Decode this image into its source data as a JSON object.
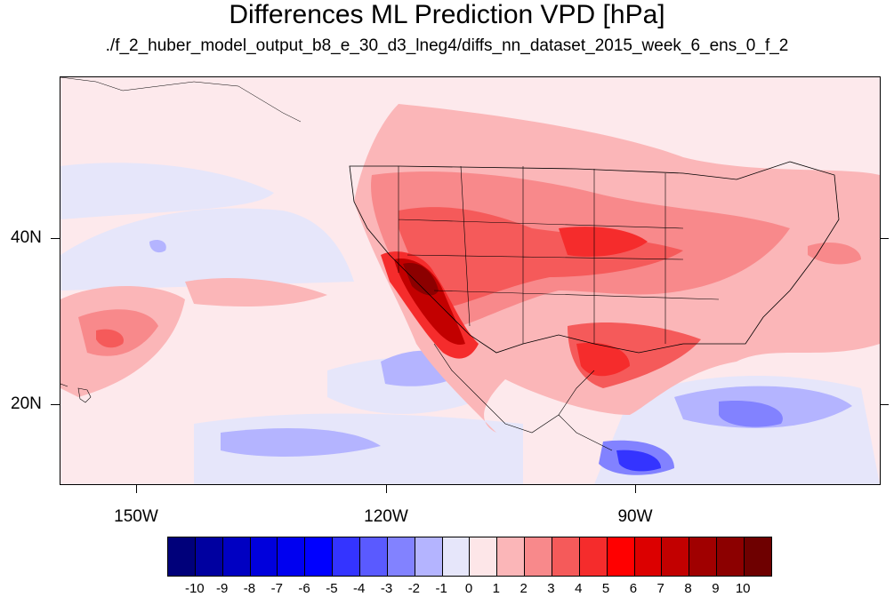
{
  "title": "Differences ML Prediction VPD [hPa]",
  "subtitle": "./f_2_huber_model_output_b8_e_30_d3_lneg4/diffs_nn_dataset_2015_week_6_ens_0_f_2",
  "lat_labels": [
    "40N",
    "20N"
  ],
  "lon_labels": [
    "150W",
    "120W",
    "90W"
  ],
  "colorbar": {
    "labels": [
      "-10",
      "-9",
      "-8",
      "-7",
      "-6",
      "-5",
      "-4",
      "-3",
      "-2",
      "-1",
      "0",
      "1",
      "2",
      "3",
      "4",
      "5",
      "6",
      "7",
      "8",
      "9",
      "10"
    ],
    "colors": [
      "#00007a",
      "#0000a0",
      "#0000c2",
      "#0000dc",
      "#0000f0",
      "#0000ff",
      "#3434ff",
      "#5a5aff",
      "#8282ff",
      "#b4b4ff",
      "#e6e6fa",
      "#fde6e8",
      "#fbb6b8",
      "#f8898b",
      "#f55a5a",
      "#f52c2c",
      "#ff0000",
      "#dc0000",
      "#c20000",
      "#a00000",
      "#8c0000",
      "#6e0000"
    ]
  }
}
